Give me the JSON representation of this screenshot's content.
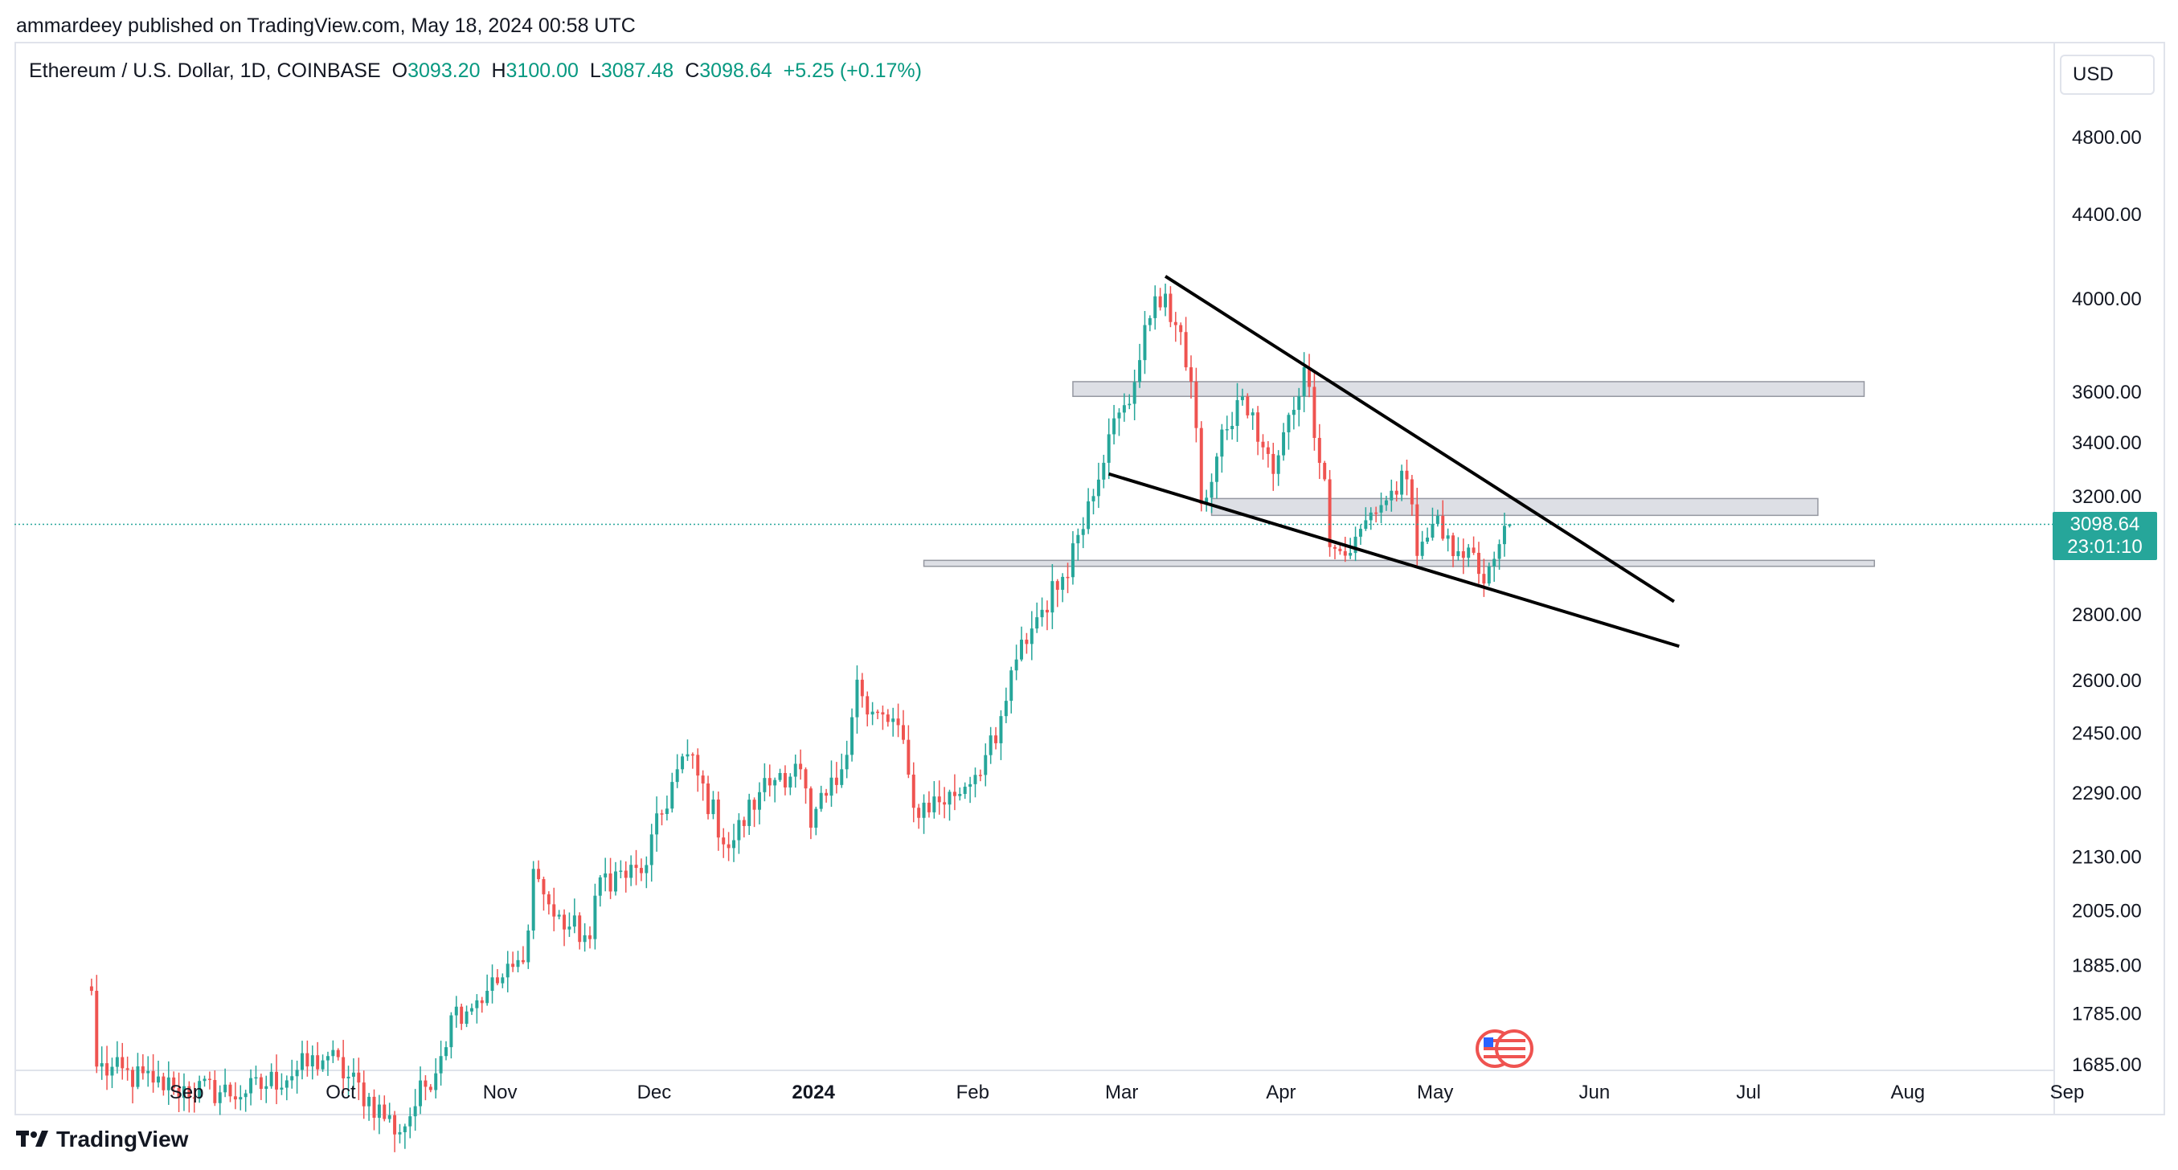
{
  "header": {
    "publisher": "ammardeey published on TradingView.com, May 18, 2024 00:58 UTC"
  },
  "legend": {
    "symbol": "Ethereum / U.S. Dollar, 1D, COINBASE",
    "open_label": "O",
    "open": "3093.20",
    "high_label": "H",
    "high": "3100.00",
    "low_label": "L",
    "low": "3087.48",
    "close_label": "C",
    "close": "3098.64",
    "change": "+5.25 (+0.17%)"
  },
  "currency_selector": "USD",
  "last_price": {
    "value": "3098.64",
    "countdown": "23:01:10"
  },
  "footer": {
    "brand": "TradingView",
    "logo_icon": "tradingview-logo-icon"
  },
  "events_icon": "us-flag-economic-events-icon",
  "colors": {
    "up": "#26a69a",
    "down": "#ef5350",
    "accent": "#26a69a",
    "trendline": "#000000",
    "zone": "#d1d4dc"
  },
  "chart_data": {
    "type": "candlestick",
    "scale": "log",
    "y_ticks": [
      "4800.00",
      "4400.00",
      "4000.00",
      "3600.00",
      "3400.00",
      "3200.00",
      "2800.00",
      "2600.00",
      "2450.00",
      "2290.00",
      "2130.00",
      "2005.00",
      "1885.00",
      "1785.00",
      "1685.00"
    ],
    "x_ticks": [
      "Sep",
      "Oct",
      "Nov",
      "Dec",
      "2024",
      "Feb",
      "Mar",
      "Apr",
      "May",
      "Jun",
      "Jul",
      "Aug",
      "Sep"
    ],
    "anchor_points": [
      [
        "2023-08-16",
        1830
      ],
      [
        "2023-08-17",
        1680
      ],
      [
        "2023-08-28",
        1650
      ],
      [
        "2023-09-01",
        1640
      ],
      [
        "2023-09-15",
        1630
      ],
      [
        "2023-10-01",
        1700
      ],
      [
        "2023-10-15",
        1560
      ],
      [
        "2023-10-23",
        1700
      ],
      [
        "2023-10-25",
        1780
      ],
      [
        "2023-11-01",
        1830
      ],
      [
        "2023-11-08",
        1890
      ],
      [
        "2023-11-10",
        2100
      ],
      [
        "2023-11-14",
        1990
      ],
      [
        "2023-11-21",
        1940
      ],
      [
        "2023-11-23",
        2080
      ],
      [
        "2023-12-01",
        2090
      ],
      [
        "2023-12-08",
        2350
      ],
      [
        "2023-12-10",
        2390
      ],
      [
        "2023-12-18",
        2150
      ],
      [
        "2023-12-24",
        2290
      ],
      [
        "2023-12-28",
        2340
      ],
      [
        "2024-01-01",
        2350
      ],
      [
        "2024-01-03",
        2200
      ],
      [
        "2024-01-09",
        2350
      ],
      [
        "2024-01-12",
        2600
      ],
      [
        "2024-01-14",
        2500
      ],
      [
        "2024-01-20",
        2470
      ],
      [
        "2024-01-23",
        2250
      ],
      [
        "2024-01-31",
        2280
      ],
      [
        "2024-02-08",
        2420
      ],
      [
        "2024-02-12",
        2660
      ],
      [
        "2024-02-16",
        2790
      ],
      [
        "2024-02-21",
        2920
      ],
      [
        "2024-02-26",
        3180
      ],
      [
        "2024-03-01",
        3430
      ],
      [
        "2024-03-05",
        3550
      ],
      [
        "2024-03-08",
        3880
      ],
      [
        "2024-03-12",
        4020
      ],
      [
        "2024-03-14",
        3880
      ],
      [
        "2024-03-17",
        3640
      ],
      [
        "2024-03-19",
        3170
      ],
      [
        "2024-03-24",
        3450
      ],
      [
        "2024-03-27",
        3580
      ],
      [
        "2024-04-02",
        3280
      ],
      [
        "2024-04-08",
        3700
      ],
      [
        "2024-04-12",
        3260
      ],
      [
        "2024-04-13",
        3020
      ],
      [
        "2024-04-17",
        3000
      ],
      [
        "2024-04-21",
        3140
      ],
      [
        "2024-04-28",
        3260
      ],
      [
        "2024-04-30",
        2990
      ],
      [
        "2024-05-03",
        3100
      ],
      [
        "2024-05-06",
        3060
      ],
      [
        "2024-05-12",
        2930
      ],
      [
        "2024-05-15",
        2980
      ],
      [
        "2024-05-16",
        3030
      ],
      [
        "2024-05-17",
        3093
      ]
    ],
    "last_candle": {
      "date": "2024-05-18",
      "open": 3093.2,
      "high": 3100.0,
      "low": 3087.48,
      "close": 3098.64
    },
    "zones": [
      {
        "from": "2024-02-23",
        "to": "2024-07-26",
        "low": 3580,
        "high": 3640
      },
      {
        "from": "2024-03-21",
        "to": "2024-07-17",
        "low": 3130,
        "high": 3190
      },
      {
        "from": "2024-01-25",
        "to": "2024-07-28",
        "low": 2955,
        "high": 2975
      }
    ],
    "trendlines": [
      {
        "from": [
          "2024-03-12",
          4100
        ],
        "to": [
          "2024-06-19",
          2840
        ]
      },
      {
        "from": [
          "2024-03-01",
          3280
        ],
        "to": [
          "2024-06-20",
          2700
        ]
      }
    ]
  }
}
